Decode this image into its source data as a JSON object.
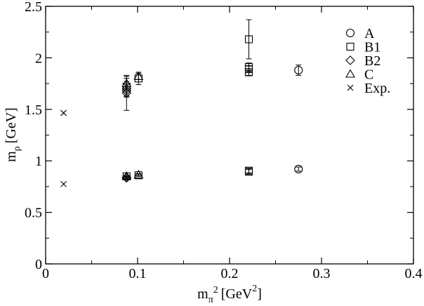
{
  "chart_data": {
    "type": "scatter",
    "xlabel": {
      "base": "m",
      "sub": "π",
      "sup": "2",
      "units": "[GeV",
      "units_sup": "2",
      "units_close": "]"
    },
    "ylabel": {
      "base": "m",
      "sub": "ρ",
      "units": "[GeV]"
    },
    "xlim": [
      0,
      0.4
    ],
    "ylim": [
      0,
      2.5
    ],
    "xticks": [
      "0",
      "0.1",
      "0.2",
      "0.3",
      "0.4"
    ],
    "yticks": [
      "0",
      "0.5",
      "1",
      "1.5",
      "2",
      "2.5"
    ],
    "grid": false,
    "legend_position": "top-right",
    "series": [
      {
        "name": "A",
        "marker": "circle",
        "points": [
          {
            "x": 0.275,
            "y": 1.88,
            "err": 0.05
          },
          {
            "x": 0.275,
            "y": 0.92,
            "err": 0.02
          }
        ]
      },
      {
        "name": "B1",
        "marker": "square",
        "points": [
          {
            "x": 0.221,
            "y": 2.18,
            "err": 0.19
          },
          {
            "x": 0.221,
            "y": 1.91,
            "err": 0.04
          },
          {
            "x": 0.221,
            "y": 1.89,
            "err": 0.03
          },
          {
            "x": 0.221,
            "y": 1.86,
            "err": 0.03
          },
          {
            "x": 0.221,
            "y": 0.905,
            "err": 0.02
          },
          {
            "x": 0.221,
            "y": 0.895,
            "err": 0.02
          },
          {
            "x": 0.101,
            "y": 1.8,
            "err": 0.06
          },
          {
            "x": 0.101,
            "y": 0.86,
            "err": 0.01
          },
          {
            "x": 0.088,
            "y": 1.72,
            "err": 0.1
          },
          {
            "x": 0.088,
            "y": 0.85,
            "err": 0.01
          }
        ]
      },
      {
        "name": "B2",
        "marker": "diamond",
        "points": [
          {
            "x": 0.088,
            "y": 1.7,
            "err": 0.07
          },
          {
            "x": 0.088,
            "y": 1.68,
            "err": 0.06
          },
          {
            "x": 0.088,
            "y": 1.66,
            "err": 0.17
          },
          {
            "x": 0.088,
            "y": 0.84,
            "err": 0.01
          },
          {
            "x": 0.088,
            "y": 0.835,
            "err": 0.01
          }
        ]
      },
      {
        "name": "C",
        "marker": "triangle",
        "points": [
          {
            "x": 0.101,
            "y": 1.82,
            "err": 0.03
          },
          {
            "x": 0.101,
            "y": 0.865,
            "err": 0.01
          },
          {
            "x": 0.088,
            "y": 1.75,
            "err": 0.05
          },
          {
            "x": 0.088,
            "y": 0.85,
            "err": 0.01
          }
        ]
      },
      {
        "name": "Exp.",
        "marker": "cross",
        "points": [
          {
            "x": 0.0195,
            "y": 1.465,
            "err": 0
          },
          {
            "x": 0.0195,
            "y": 0.775,
            "err": 0
          }
        ]
      }
    ]
  }
}
